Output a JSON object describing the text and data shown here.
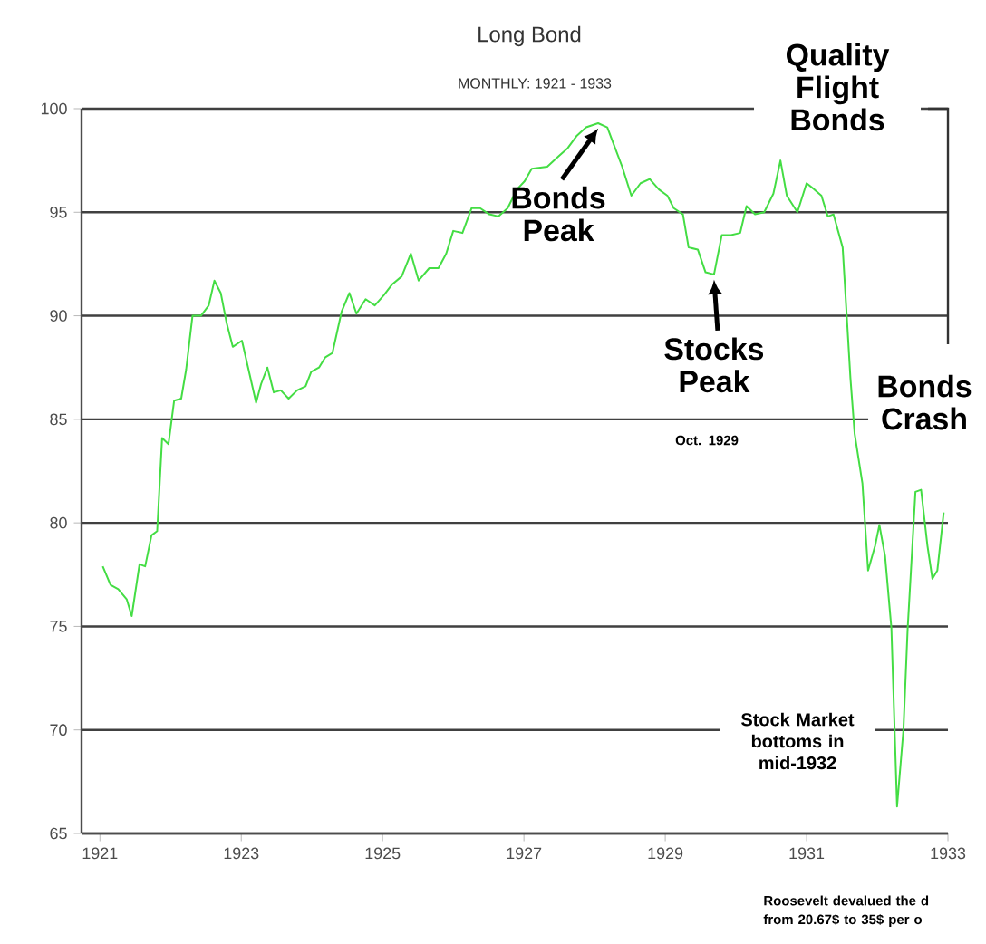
{
  "chart_data": {
    "type": "line",
    "title": "Long Bond",
    "subtitle": "MONTHLY: 1921 - 1933",
    "x": [
      1921.04,
      1921.15,
      1921.26,
      1921.38,
      1921.45,
      1921.56,
      1921.64,
      1921.73,
      1921.81,
      1921.88,
      1921.97,
      1922.05,
      1922.15,
      1922.22,
      1922.31,
      1922.43,
      1922.54,
      1922.62,
      1922.71,
      1922.79,
      1922.88,
      1923.01,
      1923.09,
      1923.21,
      1923.28,
      1923.37,
      1923.46,
      1923.56,
      1923.67,
      1923.79,
      1923.91,
      1923.99,
      1924.1,
      1924.19,
      1924.29,
      1924.42,
      1924.53,
      1924.63,
      1924.76,
      1924.89,
      1925.02,
      1925.13,
      1925.27,
      1925.4,
      1925.51,
      1925.66,
      1925.79,
      1925.9,
      1926.0,
      1926.13,
      1926.26,
      1926.38,
      1926.51,
      1926.64,
      1926.77,
      1926.9,
      1927.01,
      1927.11,
      1927.33,
      1927.49,
      1927.62,
      1927.75,
      1927.88,
      1928.05,
      1928.18,
      1928.29,
      1928.39,
      1928.52,
      1928.65,
      1928.78,
      1928.91,
      1929.03,
      1929.12,
      1929.25,
      1929.33,
      1929.46,
      1929.57,
      1929.69,
      1929.8,
      1929.93,
      1930.06,
      1930.15,
      1930.27,
      1930.4,
      1930.53,
      1930.63,
      1930.72,
      1930.87,
      1931.0,
      1931.11,
      1931.21,
      1931.3,
      1931.38,
      1931.51,
      1931.62,
      1931.68,
      1931.79,
      1931.87,
      1931.97,
      1932.03,
      1932.11,
      1932.2,
      1932.28,
      1932.37,
      1932.43,
      1932.54,
      1932.62,
      1932.71,
      1932.78,
      1932.85,
      1932.94
    ],
    "series": [
      {
        "color": "#44dd44",
        "values": [
          77.9,
          77.0,
          76.8,
          76.3,
          75.5,
          78.0,
          77.9,
          79.4,
          79.6,
          84.1,
          83.8,
          85.9,
          86.0,
          87.4,
          90.0,
          90.0,
          90.5,
          91.7,
          91.1,
          89.7,
          88.5,
          88.8,
          87.6,
          85.8,
          86.7,
          87.5,
          86.3,
          86.4,
          86.0,
          86.4,
          86.6,
          87.3,
          87.5,
          88.0,
          88.2,
          90.2,
          91.1,
          90.1,
          90.8,
          90.5,
          91.0,
          91.5,
          91.9,
          93.0,
          91.7,
          92.3,
          92.3,
          93.0,
          94.1,
          94.0,
          95.2,
          95.2,
          94.9,
          94.8,
          95.2,
          96.1,
          96.5,
          97.1,
          97.2,
          97.7,
          98.1,
          98.7,
          99.1,
          99.3,
          99.1,
          98.1,
          97.2,
          95.8,
          96.4,
          96.6,
          96.1,
          95.8,
          95.2,
          94.9,
          93.3,
          93.2,
          92.1,
          92.0,
          93.9,
          93.9,
          94.0,
          95.3,
          94.9,
          95.0,
          95.9,
          97.5,
          95.8,
          95.0,
          96.4,
          96.1,
          95.8,
          94.8,
          94.9,
          93.3,
          87.0,
          84.3,
          81.9,
          77.7,
          78.9,
          79.9,
          78.4,
          74.9,
          66.3,
          70.0,
          74.9,
          81.5,
          81.6,
          78.9,
          77.3,
          77.7,
          80.5
        ]
      }
    ],
    "xlim": [
      1920.74,
      1933.0
    ],
    "xticks": [
      1921,
      1923,
      1925,
      1927,
      1929,
      1931,
      1933
    ],
    "ylim": [
      65,
      100
    ],
    "yticks": [
      65,
      70,
      75,
      80,
      85,
      90,
      95,
      100
    ],
    "grid": "y",
    "annotations": [
      "Quality Flight Bonds",
      {
        "text": "Bonds Peak",
        "x": 1928.05,
        "y": 99.3
      },
      {
        "text": "Stocks Peak",
        "x": 1929.69,
        "y": 92.0
      },
      "Oct. 1929",
      "Bonds Crash",
      "Stock Market bottoms in mid-1932",
      "Roosevelt devalued the d",
      "from 20.67$ to 35$ per o"
    ]
  }
}
